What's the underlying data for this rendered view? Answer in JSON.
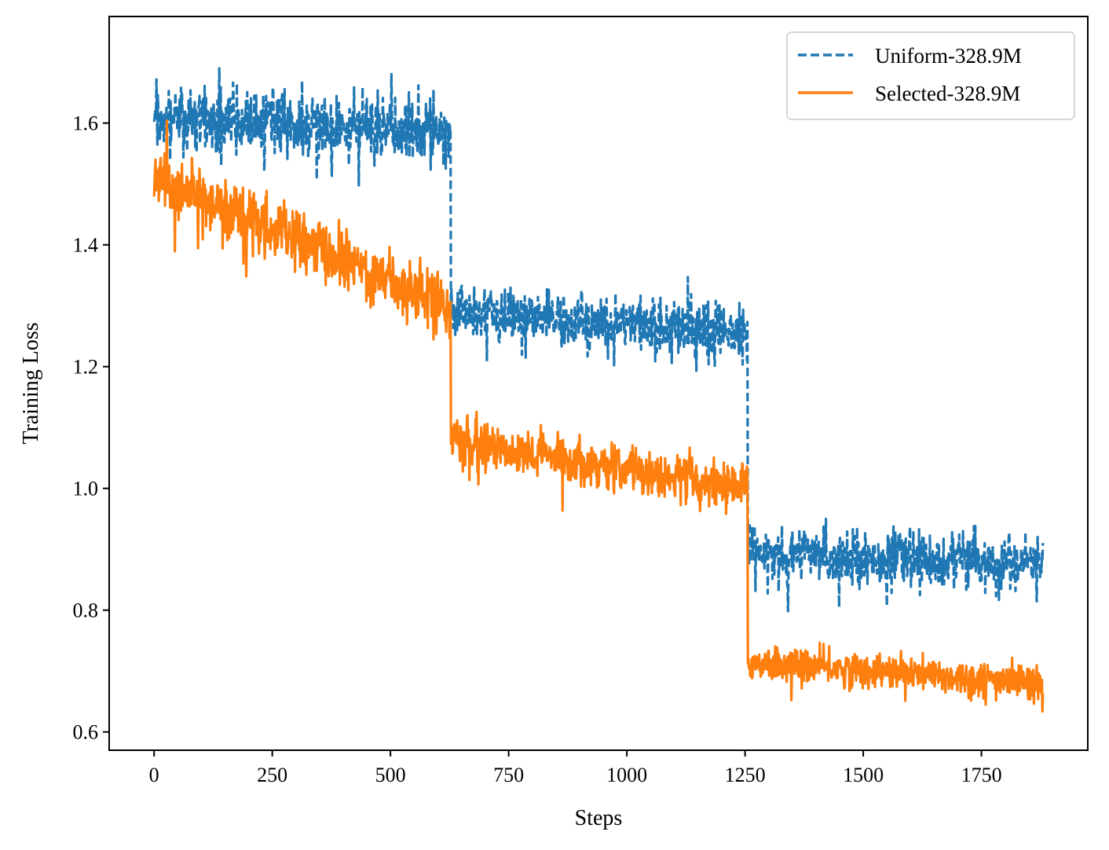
{
  "chart_data": {
    "type": "line",
    "title": "",
    "xlabel": "Steps",
    "ylabel": "Training Loss",
    "xlim": [
      -95,
      1975
    ],
    "ylim": [
      0.57,
      1.775
    ],
    "xticks": [
      0,
      250,
      500,
      750,
      1000,
      1250,
      1500,
      1750
    ],
    "yticks": [
      0.6,
      0.8,
      1.0,
      1.2,
      1.4,
      1.6
    ],
    "xtick_labels": [
      "0",
      "250",
      "500",
      "750",
      "1000",
      "1250",
      "1500",
      "1750"
    ],
    "ytick_labels": [
      "0.6",
      "0.8",
      "1.0",
      "1.2",
      "1.4",
      "1.6"
    ],
    "grid": false,
    "legend_position": "top-right",
    "noise_seed": 7,
    "series": [
      {
        "name": "Uniform-328.9M",
        "color": "#1f77b4",
        "style": "dashed",
        "x_range": [
          0,
          1880
        ],
        "segments": [
          {
            "x_start": 0,
            "x_end": 627,
            "y_start": 1.61,
            "y_end": 1.585,
            "noise": 0.026
          },
          {
            "x_start": 627,
            "x_end": 1255,
            "y_start": 1.29,
            "y_end": 1.255,
            "noise": 0.022
          },
          {
            "x_start": 1255,
            "x_end": 1880,
            "y_start": 0.895,
            "y_end": 0.875,
            "noise": 0.021
          }
        ]
      },
      {
        "name": "Selected-328.9M",
        "color": "#ff7f0e",
        "style": "solid",
        "x_range": [
          0,
          1880
        ],
        "segments": [
          {
            "x_start": 0,
            "x_end": 627,
            "y_start": 1.51,
            "y_end": 1.3,
            "noise": 0.024
          },
          {
            "x_start": 627,
            "x_end": 1255,
            "y_start": 1.08,
            "y_end": 1.0,
            "noise": 0.018
          },
          {
            "x_start": 1255,
            "x_end": 1880,
            "y_start": 0.715,
            "y_end": 0.68,
            "noise": 0.014
          }
        ]
      }
    ]
  }
}
